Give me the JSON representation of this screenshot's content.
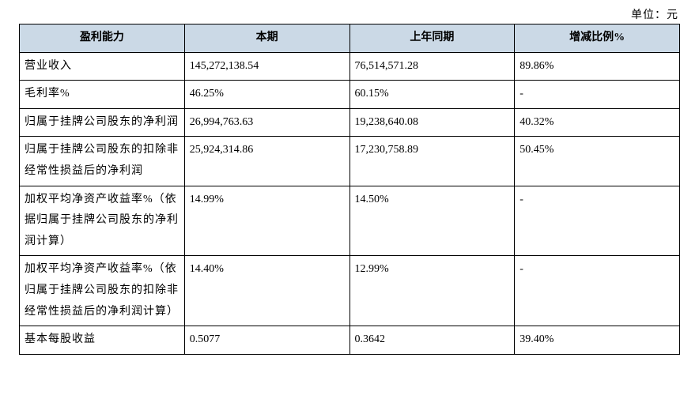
{
  "unit_label": "单位：元",
  "table": {
    "header_bg": "#cbd9e6",
    "border_color": "#000000",
    "font_family": "SimSun",
    "columns": [
      "盈利能力",
      "本期",
      "上年同期",
      "增减比例%"
    ],
    "col_widths_pct": [
      25,
      25,
      25,
      25
    ],
    "rows": [
      [
        "营业收入",
        "145,272,138.54",
        "76,514,571.28",
        "89.86%"
      ],
      [
        "毛利率%",
        "46.25%",
        "60.15%",
        "-"
      ],
      [
        "归属于挂牌公司股东的净利润",
        "26,994,763.63",
        "19,238,640.08",
        "40.32%"
      ],
      [
        "归属于挂牌公司股东的扣除非经常性损益后的净利润",
        "25,924,314.86",
        "17,230,758.89",
        "50.45%"
      ],
      [
        "加权平均净资产收益率%（依据归属于挂牌公司股东的净利润计算）",
        "14.99%",
        "14.50%",
        "-"
      ],
      [
        "加权平均净资产收益率%（依归属于挂牌公司股东的扣除非经常性损益后的净利润计算）",
        "14.40%",
        "12.99%",
        "-"
      ],
      [
        "基本每股收益",
        "0.5077",
        "0.3642",
        "39.40%"
      ]
    ]
  }
}
